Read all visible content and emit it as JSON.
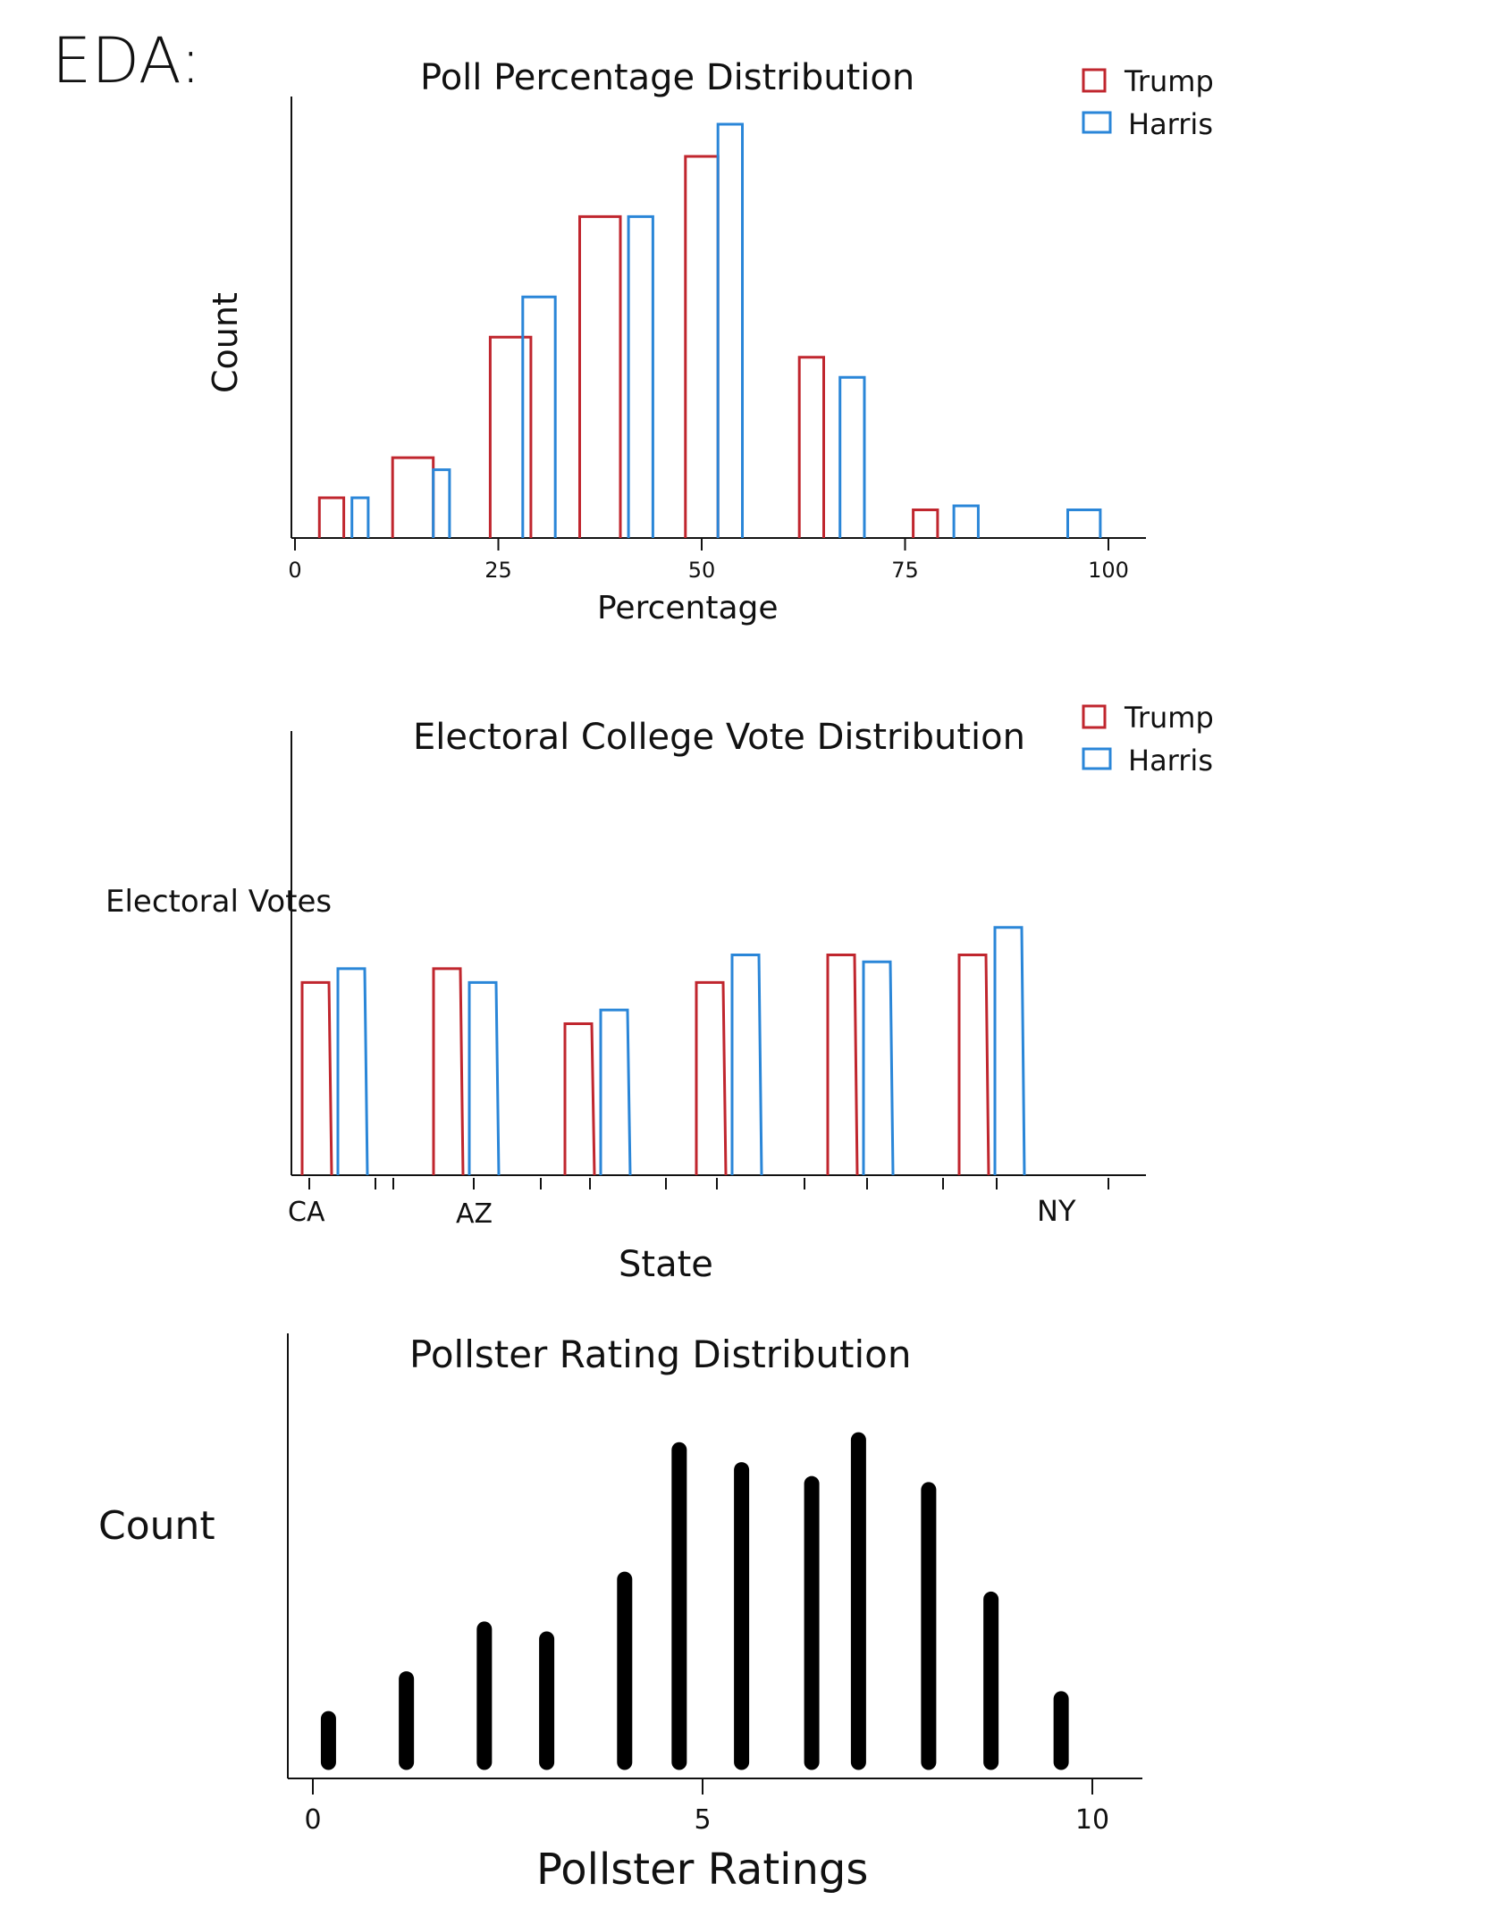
{
  "page": {
    "heading": "EDA:"
  },
  "colors": {
    "trump": "#c0262e",
    "harris": "#2a86d8",
    "ink": "#111111"
  },
  "chart_data": [
    {
      "type": "bar",
      "title": "Poll Percentage Distribution",
      "xlabel": "Percentage",
      "ylabel": "Count",
      "xlim": [
        0,
        100
      ],
      "xticks": [
        "0",
        "25",
        "50",
        "75",
        "100"
      ],
      "grid": false,
      "legend_position": "top-right",
      "series": [
        {
          "name": "Trump",
          "color": "#c0262e",
          "bins": [
            [
              3,
              6
            ],
            [
              12,
              17
            ],
            [
              24,
              29
            ],
            [
              35,
              40
            ],
            [
              48,
              52
            ],
            [
              62,
              65
            ],
            [
              76,
              79
            ]
          ],
          "values": [
            1,
            2,
            5,
            8,
            9.5,
            4.5,
            0.7
          ]
        },
        {
          "name": "Harris",
          "color": "#2a86d8",
          "bins": [
            [
              7,
              9
            ],
            [
              17,
              19
            ],
            [
              28,
              32
            ],
            [
              41,
              44
            ],
            [
              52,
              55
            ],
            [
              67,
              70
            ],
            [
              81,
              84
            ],
            [
              95,
              99
            ]
          ],
          "values": [
            1,
            1.7,
            6,
            8,
            10.3,
            4,
            0.8,
            0.7
          ]
        }
      ]
    },
    {
      "type": "bar",
      "title": "Electoral College Vote Distribution",
      "xlabel": "State",
      "ylabel": "Electoral Votes",
      "grid": false,
      "legend_position": "top-right",
      "categories_visible": [
        "CA",
        "AZ",
        "NY"
      ],
      "series": [
        {
          "name": "Trump",
          "color": "#c0262e",
          "values": [
            14,
            15,
            11,
            14,
            16,
            16
          ]
        },
        {
          "name": "Harris",
          "color": "#2a86d8",
          "values": [
            15,
            14,
            12,
            16,
            15.5,
            18
          ]
        }
      ]
    },
    {
      "type": "bar",
      "title": "Pollster Rating Distribution",
      "xlabel": "Pollster Ratings",
      "ylabel": "Count",
      "xlim": [
        0,
        10
      ],
      "xticks": [
        "0",
        "5",
        "10"
      ],
      "grid": false,
      "x": [
        0.2,
        1.2,
        2.2,
        3.0,
        4.0,
        4.7,
        5.5,
        6.4,
        7.0,
        7.9,
        8.7,
        9.6
      ],
      "values": [
        3,
        5,
        7.5,
        7,
        10,
        16.5,
        15.5,
        14.8,
        17,
        14.5,
        9,
        4
      ]
    }
  ]
}
